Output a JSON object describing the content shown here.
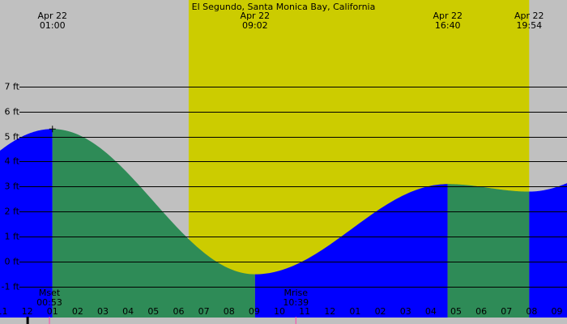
{
  "title": "El Segundo, Santa Monica Bay, California",
  "colors": {
    "background": "#c0c0c0",
    "daylight": "#cccc00",
    "rising_tide": "#2e8b57",
    "falling_tide": "#0000ff",
    "grid": "#000000"
  },
  "top_events": [
    {
      "date": "Apr 22",
      "time": "01:00"
    },
    {
      "date": "Apr 22",
      "time": "09:02"
    },
    {
      "date": "Apr 22",
      "time": "16:40"
    },
    {
      "date": "Apr 22",
      "time": "19:54"
    }
  ],
  "moon_events": [
    {
      "label": "Mset",
      "time": "00:53"
    },
    {
      "label": "Mrise",
      "time": "10:39"
    }
  ],
  "chart_data": {
    "type": "area",
    "title": "El Segundo, Santa Monica Bay, California",
    "x_unit": "hour",
    "xlim": [
      -1.08,
      21.4
    ],
    "ylim": [
      -2.0,
      7.7
    ],
    "y_unit": "ft",
    "y_ticks": [
      {
        "value": 7,
        "label": "7 ft"
      },
      {
        "value": 6,
        "label": "6 ft"
      },
      {
        "value": 5,
        "label": "5 ft"
      },
      {
        "value": 4,
        "label": "4 ft"
      },
      {
        "value": 3,
        "label": "3 ft"
      },
      {
        "value": 2,
        "label": "2 ft"
      },
      {
        "value": 1,
        "label": "1 ft"
      },
      {
        "value": 0,
        "label": "0 ft"
      },
      {
        "value": -1,
        "label": "-1 ft"
      }
    ],
    "x_ticks": [
      {
        "value": -1,
        "label": "11"
      },
      {
        "value": 0,
        "label": "12"
      },
      {
        "value": 1,
        "label": "01"
      },
      {
        "value": 2,
        "label": "02"
      },
      {
        "value": 3,
        "label": "03"
      },
      {
        "value": 4,
        "label": "04"
      },
      {
        "value": 5,
        "label": "05"
      },
      {
        "value": 6,
        "label": "06"
      },
      {
        "value": 7,
        "label": "07"
      },
      {
        "value": 8,
        "label": "08"
      },
      {
        "value": 9,
        "label": "09"
      },
      {
        "value": 10,
        "label": "10"
      },
      {
        "value": 11,
        "label": "11"
      },
      {
        "value": 12,
        "label": "12"
      },
      {
        "value": 13,
        "label": "01"
      },
      {
        "value": 14,
        "label": "02"
      },
      {
        "value": 15,
        "label": "03"
      },
      {
        "value": 16,
        "label": "04"
      },
      {
        "value": 17,
        "label": "05"
      },
      {
        "value": 18,
        "label": "06"
      },
      {
        "value": 19,
        "label": "07"
      },
      {
        "value": 20,
        "label": "08"
      },
      {
        "value": 21,
        "label": "09"
      }
    ],
    "daylight": {
      "start": 6.4,
      "end": 19.9
    },
    "tide_extrema": [
      {
        "time": -7.0,
        "height": -0.2,
        "type": "low"
      },
      {
        "time": 1.0,
        "height": 5.3,
        "type": "high"
      },
      {
        "time": 9.03,
        "height": -0.5,
        "type": "low"
      },
      {
        "time": 16.67,
        "height": 3.1,
        "type": "high"
      },
      {
        "time": 19.9,
        "height": 2.8,
        "type": "low"
      },
      {
        "time": 25.0,
        "height": 4.5,
        "type": "high"
      }
    ],
    "high_tide_marker": {
      "time": 1.0,
      "height": 5.3
    },
    "moon_ticks": [
      0.88,
      10.65
    ],
    "midnight_tick": 0
  }
}
